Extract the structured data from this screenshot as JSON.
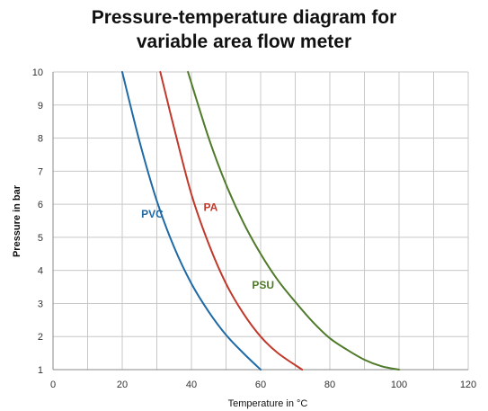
{
  "chart_data": {
    "type": "line",
    "title_line1": "Pressure-temperature diagram for",
    "title_line2": "variable area flow meter",
    "xlabel": "Temperature in °C",
    "ylabel": "Pressure in bar",
    "xlim": [
      0,
      120
    ],
    "ylim": [
      1,
      10
    ],
    "xticks": [
      0,
      20,
      40,
      60,
      80,
      100,
      120
    ],
    "yticks": [
      1,
      2,
      3,
      4,
      5,
      6,
      7,
      8,
      9,
      10
    ],
    "grid": true,
    "series": [
      {
        "name": "PVC",
        "color": "#1f6aa5",
        "x": [
          20,
          25,
          30,
          35,
          40,
          45,
          50,
          55,
          60
        ],
        "y": [
          10,
          7.9,
          6.1,
          4.7,
          3.6,
          2.75,
          2.05,
          1.5,
          1.0
        ]
      },
      {
        "name": "PA",
        "color": "#c0392b",
        "x": [
          31,
          35,
          40,
          45,
          50,
          55,
          60,
          65,
          72
        ],
        "y": [
          10,
          8.3,
          6.3,
          4.8,
          3.6,
          2.7,
          2.0,
          1.5,
          1.0
        ]
      },
      {
        "name": "PSU",
        "color": "#4e7a2a",
        "x": [
          39,
          45,
          50,
          55,
          60,
          65,
          70,
          75,
          80,
          85,
          90,
          95,
          100
        ],
        "y": [
          10,
          8.0,
          6.6,
          5.45,
          4.5,
          3.7,
          3.05,
          2.45,
          1.95,
          1.6,
          1.3,
          1.1,
          1.0
        ]
      }
    ],
    "annotations": [
      {
        "text": "PVC",
        "x": 25.5,
        "y": 5.6,
        "color": "#1f6aa5"
      },
      {
        "text": "PA",
        "x": 43.5,
        "y": 5.8,
        "color": "#c0392b"
      },
      {
        "text": "PSU",
        "x": 57.5,
        "y": 3.45,
        "color": "#4e7a2a"
      }
    ]
  }
}
